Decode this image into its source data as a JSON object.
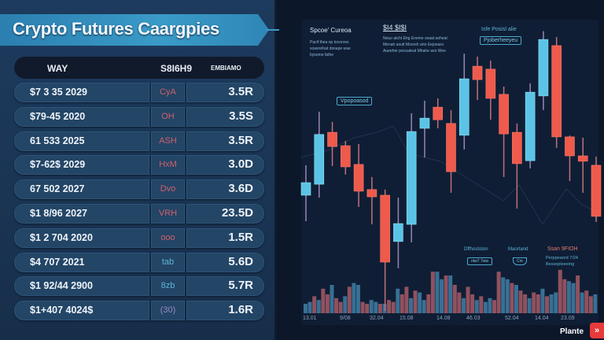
{
  "title": "Crypto Futures Caargpies",
  "table": {
    "headers": [
      "WAY",
      "S8I6H9",
      "EMBIAMO"
    ],
    "rows": [
      {
        "date": "$7 3 35 2029",
        "code": "CyA",
        "value": "3.5R",
        "code_color": "#d0606a"
      },
      {
        "date": "$79-45 2020",
        "code": "OH",
        "value": "3.5S",
        "code_color": "#d0606a"
      },
      {
        "date": "61 533 2025",
        "code": "ASH",
        "value": "3.5R",
        "code_color": "#d0606a"
      },
      {
        "date": "$7-62$ 2029",
        "code": "HxM",
        "value": "3.0D",
        "code_color": "#d0606a"
      },
      {
        "date": "67 502 2027",
        "code": "Dvo",
        "value": "3.6D",
        "code_color": "#d0606a"
      },
      {
        "date": "$1 8/96 2027",
        "code": "VRH",
        "value": "23.5D",
        "code_color": "#d0606a"
      },
      {
        "date": "$1 2 704 2020",
        "code": "ooo",
        "value": "1.5R",
        "code_color": "#d0606a"
      },
      {
        "date": "$4 707 2021",
        "code": "tab",
        "value": "5.6D",
        "code_color": "#5fb3d6"
      },
      {
        "date": "$1 92/44 2900",
        "code": "8zb",
        "value": "5.7R",
        "code_color": "#5fb3d6"
      },
      {
        "date": "$1+407 4024$",
        "code": "(30)",
        "value": "1.6R",
        "code_color": "#9a8ac0"
      }
    ]
  },
  "chart": {
    "annotations": {
      "top_left_title": "Spcoe' Cureoa",
      "top_left_text": [
        "Pacif thea op tocorves",
        "soasrefoat dsoape wae",
        "bysome fathe"
      ],
      "top_mid_title": "$I4 $I$I",
      "top_mid_text": [
        "Neuo atcht Ehg Eneme seaal aoheat",
        "Menah aoult Moorsh arto Eejoearo",
        "Aueeher pecoateat Mhahe avo Wee"
      ],
      "top_right_title": "Isfe Posisl alie",
      "top_right_box": "Pjoberheeyeu",
      "left_box": "Vpopoasod",
      "bottom_1_title": "Dffhostoton",
      "bottom_1_box": "ntw7 7ww",
      "bottom_2_title": "Maortand",
      "bottom_2_box": "Cnr",
      "bottom_3_title": "Ssan 9FIOH",
      "bottom_3_text": [
        "Perppeaord 7/24",
        "Bessepleeeing"
      ]
    },
    "x_ticks": [
      "13.01",
      "9/08",
      "32.04",
      "15.08",
      "14.08",
      "46.03",
      "52.04",
      "14.04",
      "23.09"
    ]
  },
  "chart_data": {
    "type": "candlestick",
    "colors": {
      "up": "#5bc4e6",
      "down": "#ee5a4c",
      "wick": "#9a86b8",
      "volume_up": "#3f7fa4",
      "volume_down": "#a85a66"
    },
    "candles": [
      {
        "o": 44.7,
        "h": 55.9,
        "l": 35,
        "c": 49.4
      },
      {
        "o": 48.8,
        "h": 75.9,
        "l": 43.8,
        "c": 67.4
      },
      {
        "o": 68.2,
        "h": 72.1,
        "l": 55.6,
        "c": 62.9
      },
      {
        "o": 63.2,
        "h": 65,
        "l": 52.4,
        "c": 55.3
      },
      {
        "o": 56.2,
        "h": 63.8,
        "l": 40.3,
        "c": 46.2
      },
      {
        "o": 46.8,
        "h": 51.5,
        "l": 33.8,
        "c": 44.1
      },
      {
        "o": 44.7,
        "h": 46.8,
        "l": 1.5,
        "c": 19.7
      },
      {
        "o": 27.4,
        "h": 43.8,
        "l": 17.4,
        "c": 34.1
      },
      {
        "o": 33.8,
        "h": 75.3,
        "l": 27.1,
        "c": 68.5
      },
      {
        "o": 69.7,
        "h": 80,
        "l": 58.8,
        "c": 73.5
      },
      {
        "o": 77.6,
        "h": 80.9,
        "l": 69.7,
        "c": 72.9
      },
      {
        "o": 71.5,
        "h": 76.5,
        "l": 45.6,
        "c": 53.5
      },
      {
        "o": 67.1,
        "h": 97.6,
        "l": 61.8,
        "c": 88.2
      },
      {
        "o": 92.9,
        "h": 96.5,
        "l": 80.3,
        "c": 87.9
      },
      {
        "o": 91.8,
        "h": 95,
        "l": 72.9,
        "c": 80.9
      },
      {
        "o": 82.4,
        "h": 85.3,
        "l": 51.5,
        "c": 67.6
      },
      {
        "o": 68.2,
        "h": 71.5,
        "l": 39.7,
        "c": 56.5
      },
      {
        "o": 57.6,
        "h": 86.5,
        "l": 54.7,
        "c": 83.2
      },
      {
        "o": 81.8,
        "h": 106,
        "l": 76.5,
        "c": 102.9
      },
      {
        "o": 100.6,
        "h": 103.8,
        "l": 62.4,
        "c": 66.5
      },
      {
        "o": 66.5,
        "h": 67,
        "l": 50,
        "c": 59.4
      },
      {
        "o": 59.4,
        "h": 66.2,
        "l": 45.6,
        "c": 57.4
      },
      {
        "o": 55.9,
        "h": 59.1,
        "l": 34.7,
        "c": 36.8
      }
    ],
    "volume": [
      10,
      12,
      18,
      14,
      26,
      20,
      30,
      16,
      12,
      18,
      28,
      32,
      30,
      12,
      10,
      14,
      12,
      10,
      10,
      14,
      12,
      26,
      20,
      28,
      16,
      24,
      22,
      14,
      20,
      44,
      44,
      36,
      40,
      40,
      30,
      22,
      16,
      28,
      20,
      14,
      18,
      12,
      16,
      14,
      44,
      38,
      36,
      32,
      30,
      24,
      20,
      16,
      22,
      20,
      26,
      18,
      20,
      22,
      46,
      36,
      34,
      32,
      40,
      22,
      24,
      18,
      20
    ]
  },
  "brand": {
    "name": "Plante",
    "icon": "double-chevron-icon"
  }
}
